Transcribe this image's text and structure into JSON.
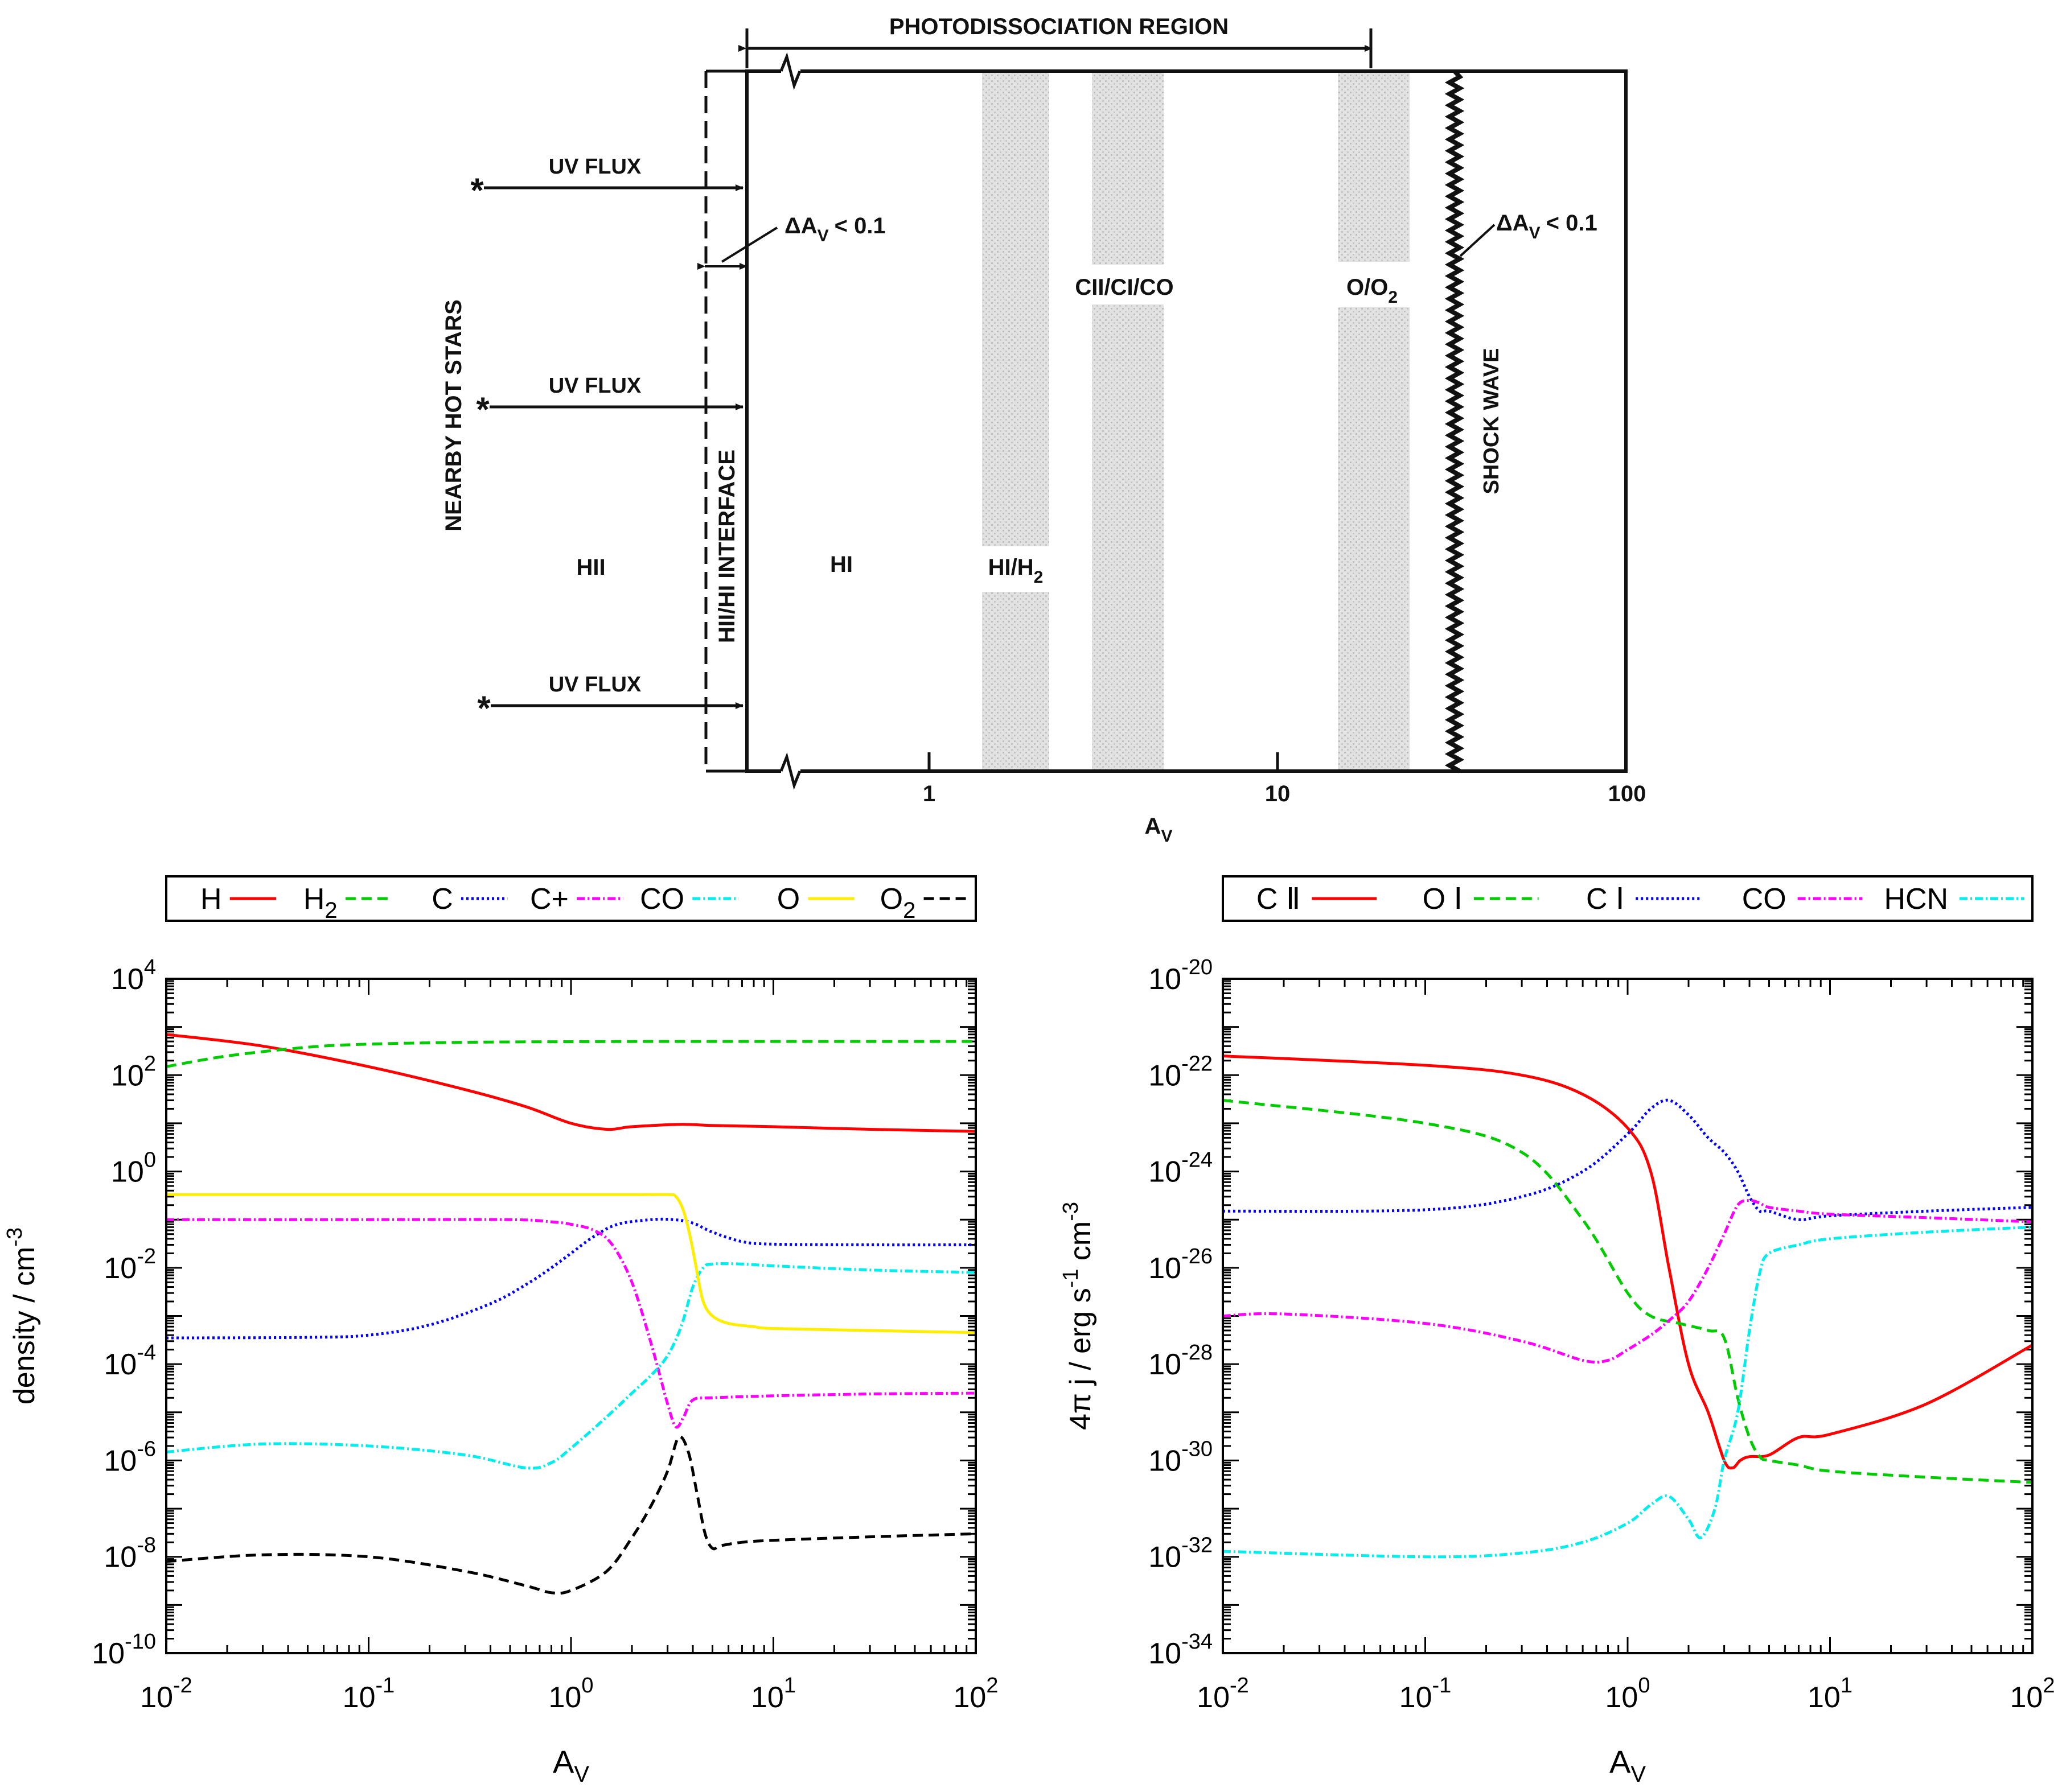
{
  "diagram": {
    "top_label": "PHOTODISSOCIATION REGION",
    "side_label": "NEARBY HOT STARS",
    "uv_flux_label": "UV FLUX",
    "star_symbol": "*",
    "interface_label": "HII/HI INTERFACE",
    "delta_av_label": "ΔA",
    "delta_av_sub": "V",
    "delta_av_val": "< 0.1",
    "shock_label": "SHOCK WAVE",
    "zones": {
      "hii": "HII",
      "hi": "HI",
      "hi_h2": "HI/H",
      "hi_h2_sub": "2",
      "carbon": "CII/CI/CO",
      "oxygen": "O/O",
      "oxygen_sub": "2"
    },
    "ticks": [
      "1",
      "10",
      "100"
    ],
    "xlabel": "A",
    "xlabel_sub": "V"
  },
  "chart_data": [
    {
      "type": "line",
      "xscale": "log",
      "yscale": "log",
      "xlim": [
        0.01,
        100
      ],
      "ylim": [
        1e-10,
        10000
      ],
      "xlabel": "A",
      "xlabel_sub": "V",
      "ylabel": "density / cm",
      "ylabel_sup": "-3",
      "x_ticks": [
        {
          "base": "10",
          "exp": "-2"
        },
        {
          "base": "10",
          "exp": "-1"
        },
        {
          "base": "10",
          "exp": "0"
        },
        {
          "base": "10",
          "exp": "1"
        },
        {
          "base": "10",
          "exp": "2"
        }
      ],
      "y_ticks": [
        {
          "base": "10",
          "exp": "-10"
        },
        {
          "base": "10",
          "exp": "-8"
        },
        {
          "base": "10",
          "exp": "-6"
        },
        {
          "base": "10",
          "exp": "-4"
        },
        {
          "base": "10",
          "exp": "-2"
        },
        {
          "base": "10",
          "exp": "0"
        },
        {
          "base": "10",
          "exp": "2"
        },
        {
          "base": "10",
          "exp": "4"
        }
      ],
      "legend": {
        "position": "top",
        "entries": [
          {
            "label": "H",
            "sub": "",
            "color": "#ff0000",
            "dash": "solid"
          },
          {
            "label": "H",
            "sub": "2",
            "color": "#00cc00",
            "dash": "dashed"
          },
          {
            "label": "C",
            "sub": "",
            "color": "#0000ff",
            "dash": "dotted"
          },
          {
            "label": "C+",
            "sub": "",
            "color": "#ff00ff",
            "dash": "dashdot"
          },
          {
            "label": "CO",
            "sub": "",
            "color": "#00eeee",
            "dash": "dashdot"
          },
          {
            "label": "O",
            "sub": "",
            "color": "#ffee00",
            "dash": "solid"
          },
          {
            "label": "O",
            "sub": "2",
            "color": "#000000",
            "dash": "dashed"
          }
        ]
      },
      "series": [
        {
          "name": "H",
          "color": "#ff0000",
          "dash": "solid",
          "x": [
            0.01,
            0.03,
            0.1,
            0.3,
            0.6,
            1.0,
            1.5,
            2.0,
            3.5,
            5,
            10,
            30,
            100
          ],
          "y": [
            700,
            400,
            150,
            50,
            22,
            10,
            7.5,
            8.5,
            9.5,
            9,
            8.5,
            7.5,
            6.8
          ]
        },
        {
          "name": "H2",
          "color": "#00cc00",
          "dash": "dashed",
          "x": [
            0.01,
            0.02,
            0.05,
            0.1,
            0.3,
            1,
            3,
            10,
            100
          ],
          "y": [
            150,
            250,
            380,
            440,
            480,
            495,
            500,
            500,
            500
          ]
        },
        {
          "name": "C",
          "color": "#0000ff",
          "dash": "dotted",
          "x": [
            0.01,
            0.05,
            0.1,
            0.2,
            0.4,
            0.6,
            0.8,
            1.0,
            1.3,
            1.7,
            2.5,
            3.2,
            4.0,
            5.0,
            7.0,
            10,
            30,
            100
          ],
          "y": [
            0.00035,
            0.00036,
            0.0004,
            0.00065,
            0.0018,
            0.0045,
            0.01,
            0.02,
            0.045,
            0.08,
            0.1,
            0.1,
            0.085,
            0.055,
            0.035,
            0.031,
            0.03,
            0.03
          ]
        },
        {
          "name": "C+",
          "color": "#ff00ff",
          "dash": "dashdot",
          "x": [
            0.01,
            0.1,
            0.5,
            0.8,
            1.0,
            1.3,
            1.6,
            2.0,
            2.5,
            3.0,
            3.3,
            3.6,
            4.0,
            5.0,
            10,
            30,
            100
          ],
          "y": [
            0.1,
            0.1,
            0.1,
            0.09,
            0.08,
            0.06,
            0.03,
            0.005,
            0.00025,
            1.5e-05,
            5e-06,
            8e-06,
            1.8e-05,
            2e-05,
            2.2e-05,
            2.4e-05,
            2.5e-05
          ]
        },
        {
          "name": "CO",
          "color": "#00eeee",
          "dash": "dashdot",
          "x": [
            0.01,
            0.03,
            0.1,
            0.3,
            0.6,
            0.8,
            1.0,
            1.5,
            2.0,
            2.5,
            3.0,
            3.5,
            4.0,
            4.5,
            5.0,
            7.0,
            10,
            30,
            100
          ],
          "y": [
            1.5e-06,
            2.2e-06,
            2e-06,
            1.3e-06,
            7e-07,
            9e-07,
            1.8e-06,
            8e-06,
            2.5e-05,
            6e-05,
            0.00015,
            0.0006,
            0.004,
            0.01,
            0.012,
            0.012,
            0.011,
            0.009,
            0.008
          ]
        },
        {
          "name": "O",
          "color": "#ffee00",
          "dash": "solid",
          "x": [
            0.01,
            0.1,
            1.0,
            2.0,
            3.0,
            3.3,
            3.6,
            3.9,
            4.2,
            4.5,
            5.0,
            6.0,
            8.0,
            10,
            30,
            100
          ],
          "y": [
            0.33,
            0.33,
            0.33,
            0.33,
            0.33,
            0.3,
            0.15,
            0.04,
            0.008,
            0.002,
            0.001,
            0.0007,
            0.0006,
            0.00055,
            0.0005,
            0.00045
          ]
        },
        {
          "name": "O2",
          "color": "#000000",
          "dash": "dashed",
          "x": [
            0.01,
            0.03,
            0.1,
            0.3,
            0.6,
            0.8,
            1.0,
            1.5,
            2.0,
            2.5,
            3.0,
            3.4,
            3.8,
            4.2,
            4.6,
            5.0,
            5.5,
            7.0,
            10,
            30,
            100
          ],
          "y": [
            8e-09,
            1.1e-08,
            1e-08,
            5e-09,
            2.5e-09,
            1.8e-09,
            2e-09,
            5e-09,
            2.5e-08,
            1.2e-07,
            6e-07,
            3e-06,
            1.5e-06,
            2e-07,
            3e-08,
            1.5e-08,
            1.7e-08,
            2e-08,
            2.2e-08,
            2.6e-08,
            3e-08
          ]
        }
      ]
    },
    {
      "type": "line",
      "xscale": "log",
      "yscale": "log",
      "xlim": [
        0.01,
        100
      ],
      "ylim": [
        1e-34,
        1e-20
      ],
      "xlabel": "A",
      "xlabel_sub": "V",
      "ylabel_parts": [
        {
          "t": "4π j / erg s"
        },
        {
          "t": "-1",
          "sup": true
        },
        {
          "t": " cm"
        },
        {
          "t": "-3",
          "sup": true
        }
      ],
      "x_ticks": [
        {
          "base": "10",
          "exp": "-2"
        },
        {
          "base": "10",
          "exp": "-1"
        },
        {
          "base": "10",
          "exp": "0"
        },
        {
          "base": "10",
          "exp": "1"
        },
        {
          "base": "10",
          "exp": "2"
        }
      ],
      "y_ticks": [
        {
          "base": "10",
          "exp": "-34"
        },
        {
          "base": "10",
          "exp": "-32"
        },
        {
          "base": "10",
          "exp": "-30"
        },
        {
          "base": "10",
          "exp": "-28"
        },
        {
          "base": "10",
          "exp": "-26"
        },
        {
          "base": "10",
          "exp": "-24"
        },
        {
          "base": "10",
          "exp": "-22"
        },
        {
          "base": "10",
          "exp": "-20"
        }
      ],
      "legend": {
        "position": "top",
        "entries": [
          {
            "label": "C Ⅱ",
            "sub": "",
            "color": "#ff0000",
            "dash": "solid"
          },
          {
            "label": "O Ⅰ",
            "sub": "",
            "color": "#00cc00",
            "dash": "dashed"
          },
          {
            "label": "C Ⅰ",
            "sub": "",
            "color": "#0000ff",
            "dash": "dotted"
          },
          {
            "label": "CO",
            "sub": "",
            "color": "#ff00ff",
            "dash": "dashdot"
          },
          {
            "label": "HCN",
            "sub": "",
            "color": "#00eeee",
            "dash": "dashdot"
          }
        ]
      },
      "series": [
        {
          "name": "C II",
          "color": "#ff0000",
          "dash": "solid",
          "x": [
            0.01,
            0.1,
            0.3,
            0.6,
            1.0,
            1.3,
            1.6,
            2.0,
            2.5,
            3.0,
            3.3,
            3.6,
            4.0,
            5.0,
            7.0,
            10,
            30,
            100
          ],
          "y": [
            2.5e-22,
            1.6e-22,
            1e-22,
            4e-23,
            8e-24,
            1e-24,
            1e-26,
            1e-28,
            1e-29,
            1e-30,
            7e-31,
            1e-30,
            1.2e-30,
            1.3e-30,
            3e-30,
            3.5e-30,
            1.5e-29,
            2.5e-28
          ]
        },
        {
          "name": "O I",
          "color": "#00cc00",
          "dash": "dashed",
          "x": [
            0.01,
            0.1,
            0.3,
            0.6,
            1.0,
            1.3,
            1.8,
            2.5,
            3.0,
            3.5,
            4.0,
            4.5,
            5.0,
            7.0,
            10,
            30,
            100
          ],
          "y": [
            3e-23,
            1e-23,
            2.5e-24,
            1e-25,
            3e-27,
            1e-27,
            7e-28,
            5e-28,
            3.5e-28,
            2e-29,
            3e-30,
            1.2e-30,
            1e-30,
            8e-31,
            6e-31,
            4.5e-31,
            3.5e-31
          ]
        },
        {
          "name": "C I",
          "color": "#0000ff",
          "dash": "dotted",
          "x": [
            0.01,
            0.1,
            0.3,
            0.6,
            1.0,
            1.3,
            1.6,
            2.0,
            2.5,
            3.0,
            3.5,
            4.0,
            4.5,
            5.0,
            7.0,
            10,
            30,
            100
          ],
          "y": [
            1.5e-25,
            1.6e-25,
            3e-25,
            1e-24,
            6e-24,
            2e-23,
            3e-23,
            1.5e-23,
            5e-24,
            2.5e-24,
            1e-24,
            3e-25,
            1.5e-25,
            1.5e-25,
            1e-25,
            1.2e-25,
            1.5e-25,
            1.8e-25
          ]
        },
        {
          "name": "CO",
          "color": "#ff00ff",
          "dash": "dashdot",
          "x": [
            0.01,
            0.02,
            0.1,
            0.3,
            0.6,
            0.8,
            1.0,
            1.3,
            1.6,
            2.0,
            2.5,
            3.0,
            3.5,
            4.0,
            4.5,
            5.0,
            7.0,
            10,
            30,
            100
          ],
          "y": [
            1e-27,
            1.1e-27,
            7e-28,
            3e-28,
            1.2e-28,
            1.2e-28,
            2e-28,
            4e-28,
            8e-28,
            2e-27,
            1e-26,
            5e-26,
            2e-25,
            2.5e-25,
            2.2e-25,
            1.8e-25,
            1.5e-25,
            1.3e-25,
            1.1e-25,
            9e-26
          ]
        },
        {
          "name": "HCN",
          "color": "#00eeee",
          "dash": "dashdot",
          "x": [
            0.01,
            0.1,
            0.3,
            0.6,
            1.0,
            1.3,
            1.6,
            2.0,
            2.3,
            2.7,
            3.0,
            3.5,
            4.0,
            4.5,
            5.0,
            7.0,
            10,
            30,
            100
          ],
          "y": [
            1.3e-32,
            1e-32,
            1.2e-32,
            2e-32,
            5e-32,
            1.2e-31,
            1.8e-31,
            6e-32,
            2.5e-32,
            1e-31,
            1e-30,
            1e-29,
            5e-28,
            8e-27,
            2e-26,
            3e-26,
            4e-26,
            5.5e-26,
            7e-26
          ]
        }
      ]
    }
  ]
}
